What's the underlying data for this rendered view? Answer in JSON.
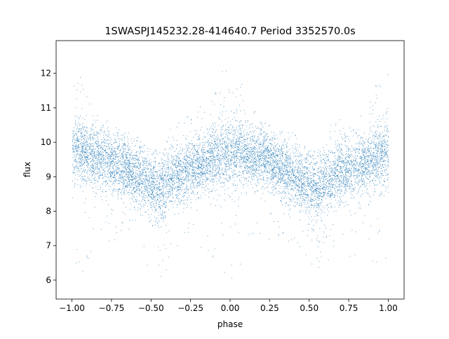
{
  "chart_data": {
    "type": "scatter",
    "title": "1SWASPJ145232.28-414640.7 Period 3352570.0s",
    "xlabel": "phase",
    "ylabel": "flux",
    "xlim": [
      -1.1,
      1.1
    ],
    "ylim": [
      5.45,
      12.95
    ],
    "xticks": [
      -1.0,
      -0.75,
      -0.5,
      -0.25,
      0.0,
      0.25,
      0.5,
      0.75,
      1.0
    ],
    "xtick_labels": [
      "−1.00",
      "−0.75",
      "−0.50",
      "−0.25",
      "0.00",
      "0.25",
      "0.50",
      "0.75",
      "1.00"
    ],
    "yticks": [
      6,
      7,
      8,
      9,
      10,
      11,
      12
    ],
    "ytick_labels": [
      "6",
      "7",
      "8",
      "9",
      "10",
      "11",
      "12"
    ],
    "grid": false,
    "marker_color": "#1f77b4",
    "profile": {
      "phase": [
        -1.0,
        -0.95,
        -0.9,
        -0.85,
        -0.8,
        -0.75,
        -0.7,
        -0.65,
        -0.6,
        -0.55,
        -0.5,
        -0.45,
        -0.4,
        -0.35,
        -0.3,
        -0.25,
        -0.2,
        -0.15,
        -0.1,
        -0.05,
        0.0,
        0.05,
        0.1,
        0.15,
        0.2,
        0.25,
        0.3,
        0.35,
        0.4,
        0.45,
        0.5,
        0.55,
        0.6,
        0.65,
        0.7,
        0.75,
        0.8,
        0.85,
        0.9,
        0.95,
        1.0
      ],
      "median_flux": [
        9.7,
        9.8,
        9.6,
        9.5,
        9.6,
        9.4,
        9.3,
        9.2,
        9.0,
        8.9,
        8.7,
        8.6,
        8.8,
        9.0,
        9.1,
        9.2,
        9.3,
        9.4,
        9.5,
        9.6,
        9.7,
        9.8,
        9.6,
        9.5,
        9.6,
        9.4,
        9.3,
        9.2,
        9.0,
        8.9,
        8.7,
        8.6,
        8.8,
        9.0,
        9.1,
        9.2,
        9.3,
        9.4,
        9.5,
        9.6,
        9.7
      ],
      "spread": [
        0.55,
        0.6,
        0.5,
        0.5,
        0.5,
        0.5,
        0.5,
        0.5,
        0.5,
        0.5,
        0.55,
        0.55,
        0.5,
        0.5,
        0.5,
        0.5,
        0.5,
        0.5,
        0.5,
        0.55,
        0.6,
        0.6,
        0.5,
        0.5,
        0.5,
        0.5,
        0.5,
        0.5,
        0.5,
        0.5,
        0.55,
        0.55,
        0.5,
        0.5,
        0.5,
        0.5,
        0.5,
        0.5,
        0.5,
        0.55,
        0.55
      ],
      "max_flux": [
        11.7,
        12.1,
        11.2,
        11.0,
        10.8,
        10.5,
        10.4,
        10.3,
        10.3,
        10.0,
        9.8,
        9.8,
        10.3,
        10.6,
        10.7,
        11.0,
        11.1,
        10.9,
        11.5,
        12.1,
        12.4,
        12.3,
        11.2,
        11.0,
        10.8,
        10.5,
        10.4,
        10.3,
        10.3,
        10.0,
        9.8,
        9.8,
        10.3,
        10.6,
        10.7,
        11.0,
        10.9,
        11.0,
        11.5,
        12.1,
        12.4
      ],
      "min_flux": [
        5.9,
        6.1,
        6.6,
        7.0,
        7.2,
        7.1,
        7.3,
        7.0,
        6.8,
        6.6,
        6.0,
        5.9,
        6.3,
        6.7,
        6.9,
        6.5,
        6.8,
        7.0,
        6.3,
        5.9,
        5.9,
        6.1,
        6.6,
        7.0,
        7.2,
        7.1,
        7.3,
        7.0,
        6.8,
        6.6,
        6.0,
        5.9,
        6.3,
        6.7,
        6.9,
        6.5,
        6.8,
        7.0,
        6.3,
        5.9,
        5.9
      ]
    }
  }
}
